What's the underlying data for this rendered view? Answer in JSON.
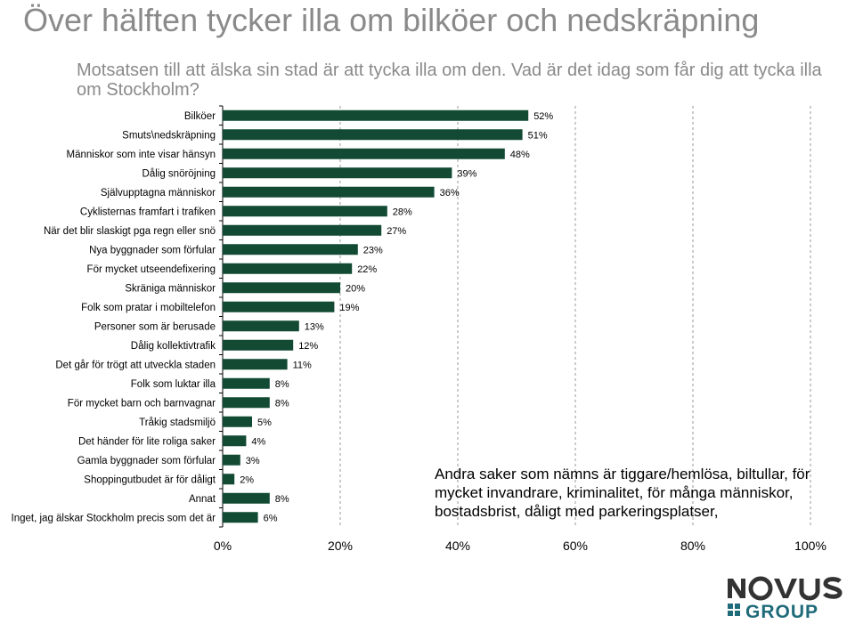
{
  "title": "Över hälften tycker illa om bilköer och nedskräpning",
  "subtitle": "Motsatsen till att älska sin stad är att tycka illa om den. Vad är det idag som får dig att tycka illa om Stockholm?",
  "note": "Andra saker som nämns är tiggare/hemlösa, biltullar, för mycket invandrare, kriminalitet, för många människor, bostadsbrist, dåligt med parkeringsplatser,",
  "logo": {
    "top": "NOVUS",
    "bottom": "GROUP",
    "color": "#333333",
    "accent": "#1f6b7a"
  },
  "chart_data": {
    "type": "bar",
    "orientation": "horizontal",
    "categories": [
      "Bilköer",
      "Smuts\\nedskräpning",
      "Människor som inte visar hänsyn",
      "Dålig snöröjning",
      "Självupptagna människor",
      "Cyklisternas framfart i trafiken",
      "När det blir slaskigt pga regn eller snö",
      "Nya byggnader som förfular",
      "För mycket utseendefixering",
      "Skräniga människor",
      "Folk som pratar i mobiltelefon",
      "Personer som är berusade",
      "Dålig kollektivtrafik",
      "Det går för trögt att utveckla staden",
      "Folk som luktar illa",
      "För mycket barn och barnvagnar",
      "Tråkig stadsmiljö",
      "Det händer för lite roliga saker",
      "Gamla byggnader som förfular",
      "Shoppingutbudet är för dåligt",
      "Annat",
      "Inget, jag älskar Stockholm precis som det är"
    ],
    "values": [
      52,
      51,
      48,
      39,
      36,
      28,
      27,
      23,
      22,
      20,
      19,
      13,
      12,
      11,
      8,
      8,
      5,
      4,
      3,
      2,
      8,
      6
    ],
    "data_labels": [
      "52%",
      "51%",
      "48%",
      "39%",
      "36%",
      "28%",
      "27%",
      "23%",
      "22%",
      "20%",
      "19%",
      "13%",
      "12%",
      "11%",
      "8%",
      "8%",
      "5%",
      "4%",
      "3%",
      "2%",
      "8%",
      "6%"
    ],
    "xlim": [
      0,
      100
    ],
    "x_ticks": [
      0,
      20,
      40,
      60,
      80,
      100
    ],
    "x_tick_labels": [
      "0%",
      "20%",
      "40%",
      "60%",
      "80%",
      "100%"
    ],
    "grid": true,
    "bar_color": "#124a34",
    "grid_color": "#999999"
  }
}
